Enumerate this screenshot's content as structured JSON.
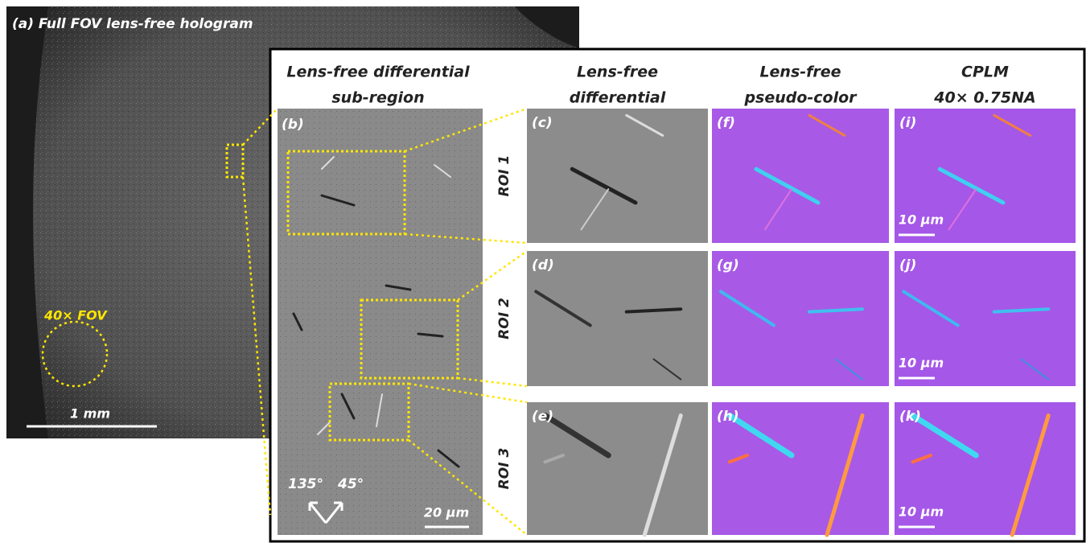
{
  "panel_a": {
    "label": "(a) Full FOV lens-free hologram",
    "fov_label": "40× FOV",
    "scale_bar": "1 mm"
  },
  "panel_b": {
    "header": [
      "Lens-free differential",
      "sub-region"
    ],
    "label": "(b)",
    "angles": [
      "135°",
      "45°"
    ],
    "scale_bar": "20 µm"
  },
  "columns": [
    {
      "header": [
        "Lens-free",
        "differential"
      ]
    },
    {
      "header": [
        "Lens-free",
        "pseudo-color"
      ]
    },
    {
      "header": [
        "CPLM",
        "40× 0.75NA"
      ]
    }
  ],
  "rows": [
    {
      "roi": "ROI 1",
      "labels": [
        "(c)",
        "(f)",
        "(i)"
      ],
      "scale_bar": "10 µm"
    },
    {
      "roi": "ROI 2",
      "labels": [
        "(d)",
        "(g)",
        "(j)"
      ],
      "scale_bar": "10 µm"
    },
    {
      "roi": "ROI 3",
      "labels": [
        "(e)",
        "(h)",
        "(k)"
      ],
      "scale_bar": "10 µm"
    }
  ]
}
